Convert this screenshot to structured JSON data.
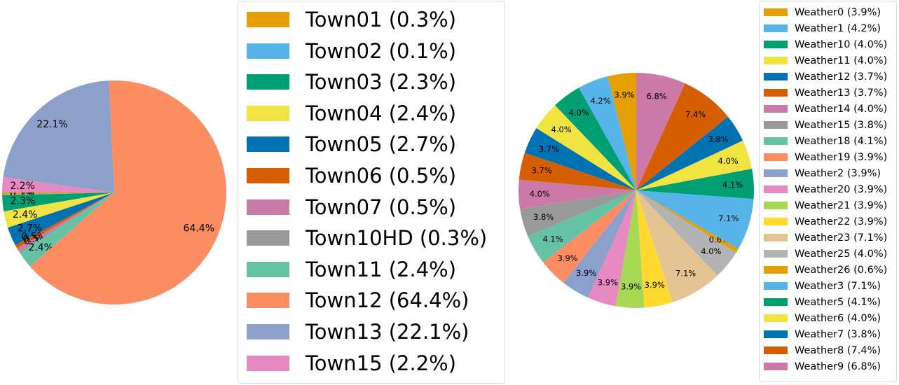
{
  "chart_data": [
    {
      "type": "pie",
      "legend_placement": "right",
      "slices": [
        {
          "label": "Town01",
          "legend": "Town01 (0.3%)",
          "value": 0.3,
          "display": "0.3%",
          "color": "#E69F00"
        },
        {
          "label": "Town02",
          "legend": "Town02 (0.1%)",
          "value": 0.1,
          "display": "0.1%",
          "color": "#56B4E9"
        },
        {
          "label": "Town03",
          "legend": "Town03 (2.3%)",
          "value": 2.3,
          "display": "2.3%",
          "color": "#009E73"
        },
        {
          "label": "Town04",
          "legend": "Town04 (2.4%)",
          "value": 2.4,
          "display": "2.4%",
          "color": "#F0E442"
        },
        {
          "label": "Town05",
          "legend": "Town05 (2.7%)",
          "value": 2.7,
          "display": "2.7%",
          "color": "#0072B2"
        },
        {
          "label": "Town06",
          "legend": "Town06 (0.5%)",
          "value": 0.5,
          "display": "0.5%",
          "color": "#D55E00"
        },
        {
          "label": "Town07",
          "legend": "Town07 (0.5%)",
          "value": 0.5,
          "display": "0.5%",
          "color": "#CC79A7"
        },
        {
          "label": "Town10HD",
          "legend": "Town10HD (0.3%)",
          "value": 0.3,
          "display": "0.3%",
          "color": "#999999"
        },
        {
          "label": "Town11",
          "legend": "Town11 (2.4%)",
          "value": 2.4,
          "display": "2.4%",
          "color": "#66C2A5"
        },
        {
          "label": "Town12",
          "legend": "Town12 (64.4%)",
          "value": 64.4,
          "display": "64.4%",
          "color": "#FC8D62"
        },
        {
          "label": "Town13",
          "legend": "Town13 (22.1%)",
          "value": 22.1,
          "display": "22.1%",
          "color": "#8DA0CB"
        },
        {
          "label": "Town15",
          "legend": "Town15 (2.2%)",
          "value": 2.2,
          "display": "2.2%",
          "color": "#E78AC3"
        }
      ]
    },
    {
      "type": "pie",
      "legend_placement": "right",
      "slices": [
        {
          "label": "Weather0",
          "legend": "Weather0 (3.9%)",
          "value": 3.9,
          "display": "3.9%",
          "color": "#E69F00"
        },
        {
          "label": "Weather1",
          "legend": "Weather1 (4.2%)",
          "value": 4.2,
          "display": "4.2%",
          "color": "#56B4E9"
        },
        {
          "label": "Weather10",
          "legend": "Weather10 (4.0%)",
          "value": 4.0,
          "display": "4.0%",
          "color": "#009E73"
        },
        {
          "label": "Weather11",
          "legend": "Weather11 (4.0%)",
          "value": 4.0,
          "display": "4.0%",
          "color": "#F0E442"
        },
        {
          "label": "Weather12",
          "legend": "Weather12 (3.7%)",
          "value": 3.7,
          "display": "3.7%",
          "color": "#0072B2"
        },
        {
          "label": "Weather13",
          "legend": "Weather13 (3.7%)",
          "value": 3.7,
          "display": "3.7%",
          "color": "#D55E00"
        },
        {
          "label": "Weather14",
          "legend": "Weather14 (4.0%)",
          "value": 4.0,
          "display": "4.0%",
          "color": "#CC79A7"
        },
        {
          "label": "Weather15",
          "legend": "Weather15 (3.8%)",
          "value": 3.8,
          "display": "3.8%",
          "color": "#999999"
        },
        {
          "label": "Weather18",
          "legend": "Weather18 (4.1%)",
          "value": 4.1,
          "display": "4.1%",
          "color": "#66C2A5"
        },
        {
          "label": "Weather19",
          "legend": "Weather19 (3.9%)",
          "value": 3.9,
          "display": "3.9%",
          "color": "#FC8D62"
        },
        {
          "label": "Weather2",
          "legend": "Weather2 (3.9%)",
          "value": 3.9,
          "display": "3.9%",
          "color": "#8DA0CB"
        },
        {
          "label": "Weather20",
          "legend": "Weather20 (3.9%)",
          "value": 3.9,
          "display": "3.9%",
          "color": "#E78AC3"
        },
        {
          "label": "Weather21",
          "legend": "Weather21 (3.9%)",
          "value": 3.9,
          "display": "3.9%",
          "color": "#A6D854"
        },
        {
          "label": "Weather22",
          "legend": "Weather22 (3.9%)",
          "value": 3.9,
          "display": "3.9%",
          "color": "#FFD92F"
        },
        {
          "label": "Weather23",
          "legend": "Weather23 (7.1%)",
          "value": 7.1,
          "display": "7.1%",
          "color": "#E5C494"
        },
        {
          "label": "Weather25",
          "legend": "Weather25 (4.0%)",
          "value": 4.0,
          "display": "4.0%",
          "color": "#B3B3B3"
        },
        {
          "label": "Weather26",
          "legend": "Weather26 (0.6%)",
          "value": 0.6,
          "display": "0.6%",
          "color": "#E69F00"
        },
        {
          "label": "Weather3",
          "legend": "Weather3 (7.1%)",
          "value": 7.1,
          "display": "7.1%",
          "color": "#56B4E9"
        },
        {
          "label": "Weather5",
          "legend": "Weather5 (4.1%)",
          "value": 4.1,
          "display": "4.1%",
          "color": "#009E73"
        },
        {
          "label": "Weather6",
          "legend": "Weather6 (4.0%)",
          "value": 4.0,
          "display": "4.0%",
          "color": "#F0E442"
        },
        {
          "label": "Weather7",
          "legend": "Weather7 (3.8%)",
          "value": 3.8,
          "display": "3.8%",
          "color": "#0072B2"
        },
        {
          "label": "Weather8",
          "legend": "Weather8 (7.4%)",
          "value": 7.4,
          "display": "7.4%",
          "color": "#D55E00"
        },
        {
          "label": "Weather9",
          "legend": "Weather9 (6.8%)",
          "value": 6.8,
          "display": "6.8%",
          "color": "#CC79A7"
        }
      ]
    }
  ]
}
